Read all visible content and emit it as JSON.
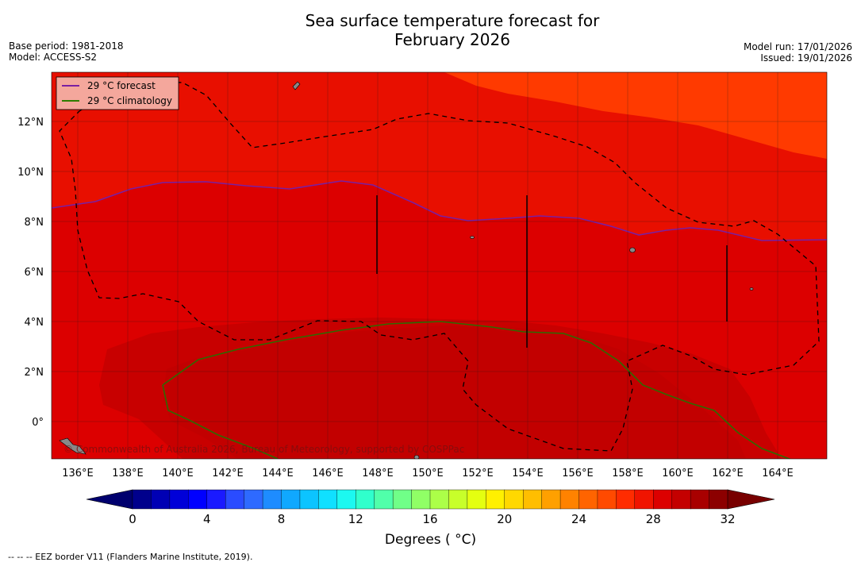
{
  "title": {
    "line1": "Sea surface temperature forecast for",
    "line2": "February 2026"
  },
  "meta_left": {
    "base_period": "Base period: 1981-2018",
    "model": "Model: ACCESS-S2"
  },
  "meta_right": {
    "model_run": "Model run: 17/01/2026",
    "issued": "Issued: 19/01/2026"
  },
  "map": {
    "lat_labels": [
      "12°N",
      "10°N",
      "8°N",
      "6°N",
      "4°N",
      "2°N",
      "0°"
    ],
    "lon_labels": [
      "136°E",
      "138°E",
      "140°E",
      "142°E",
      "144°E",
      "146°E",
      "148°E",
      "150°E",
      "152°E",
      "154°E",
      "156°E",
      "158°E",
      "160°E",
      "162°E",
      "164°E"
    ],
    "copyright": "© Commonwealth of Australia 2026, Bureau of Meteorology, supported by COSPPac"
  },
  "legend": {
    "forecast_label": "29 °C  forecast",
    "climatology_label": "29 °C  climatology",
    "forecast_color": "#7a1fa2",
    "climatology_color": "#2e7d00"
  },
  "colorbar": {
    "tick_labels": [
      "0",
      "4",
      "8",
      "12",
      "16",
      "20",
      "24",
      "28",
      "32"
    ],
    "title": "Degrees ( °C)",
    "colors": [
      "#00008c",
      "#0000b4",
      "#0000d8",
      "#0000ff",
      "#1a1aff",
      "#2a4cff",
      "#2e6aff",
      "#1e8cff",
      "#10a8ff",
      "#0cc4ff",
      "#10e0ff",
      "#1cf8f0",
      "#30ffcc",
      "#50ffaa",
      "#70ff88",
      "#90ff66",
      "#acff48",
      "#c8ff2a",
      "#e4ff10",
      "#fff000",
      "#ffd800",
      "#ffbe00",
      "#ffa000",
      "#ff8200",
      "#ff6400",
      "#ff4a00",
      "#ff2c00",
      "#f01400",
      "#dc0000",
      "#c40000",
      "#a80000",
      "#8c0000"
    ],
    "lower_extend": "#00006e",
    "upper_extend": "#780000"
  },
  "footer": "--  --  -- EEZ border V11 (Flanders Marine Institute, 2019)."
}
